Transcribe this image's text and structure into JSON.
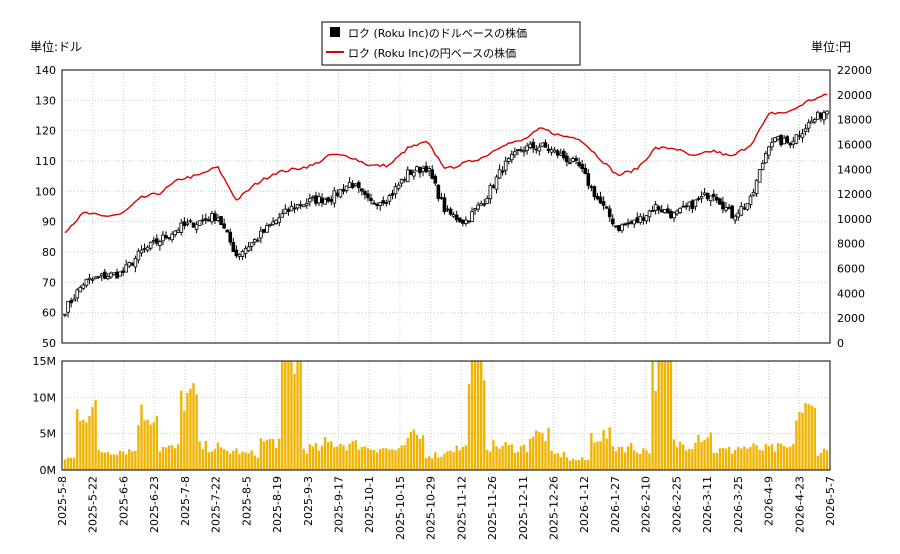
{
  "chart_data": {
    "type": "candlestick",
    "x_dates": [
      "2025-5-8",
      "2025-5-22",
      "2025-6-6",
      "2025-6-23",
      "2025-7-8",
      "2025-7-22",
      "2025-8-5",
      "2025-8-19",
      "2025-9-3",
      "2025-9-17",
      "2025-10-1",
      "2025-10-15",
      "2025-10-29",
      "2025-11-12",
      "2025-11-26",
      "2025-12-11",
      "2025-12-26",
      "2026-1-12",
      "2026-1-27",
      "2026-2-10",
      "2026-2-25",
      "2026-3-11",
      "2026-3-25",
      "2026-4-9",
      "2026-4-23",
      "2026-5-7"
    ],
    "legend": [
      {
        "label": "ロク (Roku Inc)のドルベースの株価",
        "color": "#000000",
        "symbol": "square"
      },
      {
        "label": "ロク (Roku Inc)の円ベースの株価",
        "color": "#dd0000",
        "symbol": "line"
      }
    ],
    "left_axis": {
      "unit": "単位:ドル",
      "min": 50,
      "max": 140,
      "ticks": [
        50,
        60,
        70,
        80,
        90,
        100,
        110,
        120,
        130,
        140
      ]
    },
    "right_axis": {
      "unit": "単位:円",
      "min": 0,
      "max": 22000,
      "ticks": [
        0,
        2000,
        4000,
        6000,
        8000,
        10000,
        12000,
        14000,
        16000,
        18000,
        20000,
        22000
      ]
    },
    "volume_axis": {
      "min": 0,
      "max": 15000000,
      "ticks": [
        0,
        5000000,
        10000000,
        15000000
      ],
      "tick_labels": [
        "0M",
        "5M",
        "10M",
        "15M"
      ]
    },
    "close_usd_keypoints": [
      61,
      70,
      72,
      73,
      80,
      84,
      88,
      90,
      92,
      79,
      84,
      90,
      95,
      97,
      98,
      103,
      96,
      98,
      106,
      108,
      93,
      90,
      97,
      108,
      114,
      115,
      112,
      108,
      97,
      88,
      90,
      95,
      92,
      96,
      100,
      92,
      97,
      117,
      116,
      122,
      127
    ],
    "close_jpy_keypoints": [
      9000,
      10500,
      10200,
      10400,
      11700,
      12100,
      13200,
      13500,
      14200,
      11500,
      12800,
      13700,
      14000,
      14300,
      15200,
      15000,
      14300,
      14300,
      15700,
      16200,
      14000,
      14500,
      15000,
      16000,
      16300,
      17300,
      16700,
      16500,
      15000,
      13500,
      14000,
      15700,
      15700,
      15000,
      15500,
      15000,
      16000,
      18500,
      18600,
      19500,
      20000
    ],
    "volume_keypoints": [
      1600000,
      8100000,
      2600000,
      2700000,
      7700000,
      3000000,
      10000000,
      3200000,
      2600000,
      2200000,
      3900000,
      15400000,
      3000000,
      3700000,
      3500000,
      3100000,
      2800000,
      4500000,
      2100000,
      3000000,
      15700000,
      3300000,
      3100000,
      4800000,
      2100000,
      1400000,
      4700000,
      3200000,
      2800000,
      14300000,
      3600000,
      4800000,
      2700000,
      3100000,
      2900000,
      3000000,
      8100000,
      2600000
    ]
  }
}
